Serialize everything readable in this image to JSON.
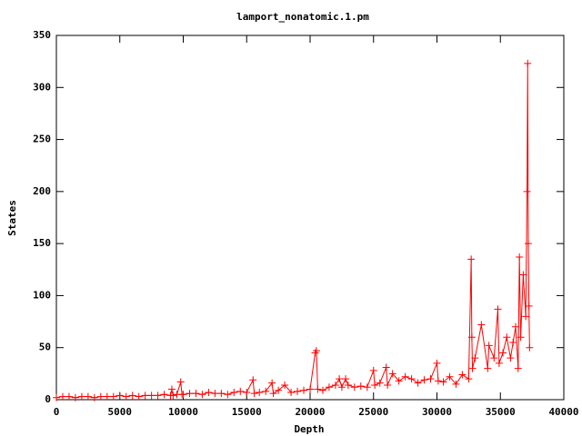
{
  "chart_data": {
    "type": "line",
    "title": "lamport_nonatomic.1.pm",
    "x_label": "Depth",
    "y_label": "States",
    "x": [
      0,
      500,
      1000,
      1500,
      2000,
      2500,
      3000,
      3500,
      4000,
      4500,
      5000,
      5500,
      6000,
      6500,
      7000,
      7500,
      8000,
      8500,
      9000,
      9100,
      9200,
      9500,
      9800,
      9900,
      10000,
      10500,
      11000,
      11500,
      12000,
      12500,
      13000,
      13500,
      14000,
      14500,
      15000,
      15500,
      15600,
      16000,
      16500,
      17000,
      17100,
      17500,
      18000,
      18500,
      19000,
      19500,
      20000,
      20400,
      20500,
      20600,
      21000,
      21500,
      22000,
      22300,
      22500,
      22800,
      23000,
      23500,
      24000,
      24500,
      25000,
      25100,
      25500,
      26000,
      26100,
      26500,
      27000,
      27500,
      28000,
      28500,
      29000,
      29500,
      30000,
      30100,
      30500,
      31000,
      31500,
      32000,
      32500,
      32700,
      32750,
      32800,
      33000,
      33500,
      34000,
      34100,
      34500,
      34800,
      34900,
      35200,
      35500,
      35800,
      36000,
      36200,
      36400,
      36500,
      36600,
      36800,
      37000,
      37100,
      37150,
      37200,
      37250,
      37300
    ],
    "series": [
      {
        "color": "#ff0000",
        "values": [
          2,
          3,
          3,
          2,
          3,
          3,
          2,
          3,
          3,
          3,
          4,
          3,
          4,
          3,
          4,
          4,
          4,
          5,
          4,
          10,
          4,
          5,
          17,
          5,
          5,
          6,
          6,
          5,
          7,
          6,
          6,
          5,
          7,
          8,
          7,
          19,
          6,
          7,
          8,
          16,
          6,
          9,
          14,
          7,
          8,
          9,
          10,
          45,
          47,
          10,
          9,
          12,
          14,
          20,
          12,
          20,
          14,
          12,
          13,
          12,
          28,
          14,
          16,
          31,
          14,
          25,
          18,
          22,
          20,
          16,
          19,
          20,
          35,
          18,
          17,
          22,
          15,
          24,
          20,
          135,
          60,
          30,
          40,
          72,
          30,
          52,
          40,
          87,
          35,
          45,
          60,
          40,
          55,
          70,
          30,
          137,
          60,
          120,
          80,
          200,
          323,
          150,
          90,
          50
        ]
      }
    ],
    "xlim": [
      0,
      40000
    ],
    "xticks": [
      0,
      5000,
      10000,
      15000,
      20000,
      25000,
      30000,
      35000,
      40000
    ],
    "ylim": [
      0,
      350
    ],
    "yticks": [
      0,
      50,
      100,
      150,
      200,
      250,
      300,
      350
    ]
  }
}
